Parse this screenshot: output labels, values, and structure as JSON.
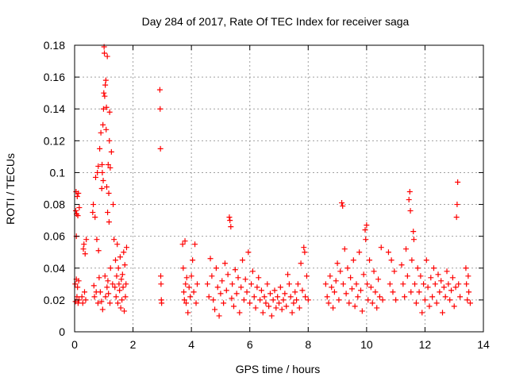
{
  "chart_data": {
    "type": "scatter",
    "title": "Day 284 of 2017, Rate Of TEC Index for receiver saga",
    "xlabel": "GPS time / hours",
    "ylabel": "ROTI / TECUs",
    "xlim": [
      0,
      14
    ],
    "ylim": [
      0,
      0.18
    ],
    "x_ticks": [
      "0",
      "2",
      "4",
      "6",
      "8",
      "10",
      "12",
      "14"
    ],
    "x_tick_values": [
      0,
      2,
      4,
      6,
      8,
      10,
      12,
      14
    ],
    "y_ticks": [
      "0",
      "0.02",
      "0.04",
      "0.06",
      "0.08",
      "0.1",
      "0.12",
      "0.14",
      "0.16",
      "0.18"
    ],
    "y_tick_values": [
      0,
      0.02,
      0.04,
      0.06,
      0.08,
      0.1,
      0.12,
      0.14,
      0.16,
      0.18
    ],
    "grid": true,
    "marker": "+",
    "color": "#ff0000",
    "series": [
      {
        "name": "ROTI",
        "points": [
          [
            0.02,
            0.03
          ],
          [
            0.03,
            0.019
          ],
          [
            0.04,
            0.076
          ],
          [
            0.05,
            0.088
          ],
          [
            0.06,
            0.06
          ],
          [
            0.06,
            0.033
          ],
          [
            0.07,
            0.074
          ],
          [
            0.08,
            0.022
          ],
          [
            0.09,
            0.085
          ],
          [
            0.1,
            0.028
          ],
          [
            0.11,
            0.073
          ],
          [
            0.12,
            0.018
          ],
          [
            0.13,
            0.087
          ],
          [
            0.14,
            0.032
          ],
          [
            0.15,
            0.02
          ],
          [
            0.16,
            0.078
          ],
          [
            0.25,
            0.022
          ],
          [
            0.28,
            0.018
          ],
          [
            0.3,
            0.052
          ],
          [
            0.32,
            0.055
          ],
          [
            0.34,
            0.025
          ],
          [
            0.36,
            0.049
          ],
          [
            0.38,
            0.02
          ],
          [
            0.4,
            0.058
          ],
          [
            0.62,
            0.075
          ],
          [
            0.64,
            0.08
          ],
          [
            0.66,
            0.029
          ],
          [
            0.68,
            0.022
          ],
          [
            0.7,
            0.072
          ],
          [
            0.72,
            0.097
          ],
          [
            0.74,
            0.025
          ],
          [
            0.76,
            0.058
          ],
          [
            0.78,
            0.1
          ],
          [
            0.8,
            0.018
          ],
          [
            0.81,
            0.104
          ],
          [
            0.82,
            0.051
          ],
          [
            0.84,
            0.034
          ],
          [
            0.86,
            0.115
          ],
          [
            0.88,
            0.025
          ],
          [
            0.9,
            0.125
          ],
          [
            0.92,
            0.019
          ],
          [
            0.93,
            0.09
          ],
          [
            0.94,
            0.105
          ],
          [
            0.95,
            0.1
          ],
          [
            0.96,
            0.014
          ],
          [
            0.97,
            0.13
          ],
          [
            0.98,
            0.095
          ],
          [
            0.99,
            0.14
          ],
          [
            1.0,
            0.15
          ],
          [
            1.01,
            0.179
          ],
          [
            1.02,
            0.175
          ],
          [
            1.03,
            0.148
          ],
          [
            1.04,
            0.035
          ],
          [
            1.05,
            0.155
          ],
          [
            1.06,
            0.022
          ],
          [
            1.07,
            0.158
          ],
          [
            1.08,
            0.127
          ],
          [
            1.09,
            0.141
          ],
          [
            1.1,
            0.091
          ],
          [
            1.11,
            0.028
          ],
          [
            1.12,
            0.173
          ],
          [
            1.13,
            0.075
          ],
          [
            1.14,
            0.032
          ],
          [
            1.15,
            0.105
          ],
          [
            1.16,
            0.024
          ],
          [
            1.17,
            0.087
          ],
          [
            1.18,
            0.069
          ],
          [
            1.19,
            0.12
          ],
          [
            1.2,
            0.138
          ],
          [
            1.21,
            0.018
          ],
          [
            1.22,
            0.103
          ],
          [
            1.23,
            0.04
          ],
          [
            1.26,
            0.113
          ],
          [
            1.3,
            0.03
          ],
          [
            1.32,
            0.08
          ],
          [
            1.35,
            0.058
          ],
          [
            1.38,
            0.028
          ],
          [
            1.4,
            0.045
          ],
          [
            1.42,
            0.022
          ],
          [
            1.44,
            0.035
          ],
          [
            1.46,
            0.055
          ],
          [
            1.48,
            0.018
          ],
          [
            1.5,
            0.04
          ],
          [
            1.52,
            0.03
          ],
          [
            1.54,
            0.026
          ],
          [
            1.56,
            0.047
          ],
          [
            1.58,
            0.015
          ],
          [
            1.6,
            0.033
          ],
          [
            1.62,
            0.02
          ],
          [
            1.64,
            0.036
          ],
          [
            1.66,
            0.028
          ],
          [
            1.68,
            0.05
          ],
          [
            1.7,
            0.013
          ],
          [
            1.72,
            0.042
          ],
          [
            1.74,
            0.022
          ],
          [
            1.76,
            0.03
          ],
          [
            1.78,
            0.053
          ],
          [
            2.92,
            0.152
          ],
          [
            2.93,
            0.14
          ],
          [
            2.94,
            0.115
          ],
          [
            2.95,
            0.035
          ],
          [
            2.96,
            0.03
          ],
          [
            2.97,
            0.02
          ],
          [
            2.98,
            0.018
          ],
          [
            3.7,
            0.055
          ],
          [
            3.72,
            0.04
          ],
          [
            3.74,
            0.025
          ],
          [
            3.76,
            0.02
          ],
          [
            3.78,
            0.057
          ],
          [
            3.8,
            0.03
          ],
          [
            3.82,
            0.018
          ],
          [
            3.84,
            0.034
          ],
          [
            3.88,
            0.012
          ],
          [
            3.92,
            0.028
          ],
          [
            3.96,
            0.022
          ],
          [
            4.0,
            0.035
          ],
          [
            4.04,
            0.045
          ],
          [
            4.08,
            0.025
          ],
          [
            4.12,
            0.055
          ],
          [
            4.16,
            0.018
          ],
          [
            4.2,
            0.03
          ],
          [
            4.55,
            0.03
          ],
          [
            4.6,
            0.022
          ],
          [
            4.65,
            0.046
          ],
          [
            4.7,
            0.035
          ],
          [
            4.75,
            0.02
          ],
          [
            4.8,
            0.014
          ],
          [
            4.85,
            0.04
          ],
          [
            4.9,
            0.028
          ],
          [
            4.95,
            0.01
          ],
          [
            5.0,
            0.024
          ],
          [
            5.05,
            0.032
          ],
          [
            5.1,
            0.018
          ],
          [
            5.15,
            0.043
          ],
          [
            5.2,
            0.026
          ],
          [
            5.25,
            0.036
          ],
          [
            5.3,
            0.072
          ],
          [
            5.32,
            0.07
          ],
          [
            5.35,
            0.066
          ],
          [
            5.38,
            0.021
          ],
          [
            5.4,
            0.03
          ],
          [
            5.45,
            0.016
          ],
          [
            5.5,
            0.039
          ],
          [
            5.55,
            0.024
          ],
          [
            5.6,
            0.034
          ],
          [
            5.65,
            0.012
          ],
          [
            5.7,
            0.028
          ],
          [
            5.75,
            0.045
          ],
          [
            5.8,
            0.02
          ],
          [
            5.85,
            0.033
          ],
          [
            5.9,
            0.025
          ],
          [
            5.95,
            0.05
          ],
          [
            6.0,
            0.018
          ],
          [
            6.05,
            0.03
          ],
          [
            6.1,
            0.038
          ],
          [
            6.15,
            0.022
          ],
          [
            6.2,
            0.015
          ],
          [
            6.25,
            0.028
          ],
          [
            6.3,
            0.034
          ],
          [
            6.35,
            0.02
          ],
          [
            6.4,
            0.026
          ],
          [
            6.45,
            0.012
          ],
          [
            6.5,
            0.022
          ],
          [
            6.55,
            0.018
          ],
          [
            6.6,
            0.03
          ],
          [
            6.65,
            0.016
          ],
          [
            6.7,
            0.024
          ],
          [
            6.75,
            0.01
          ],
          [
            6.8,
            0.02
          ],
          [
            6.85,
            0.026
          ],
          [
            6.9,
            0.015
          ],
          [
            6.95,
            0.022
          ],
          [
            7.0,
            0.018
          ],
          [
            7.05,
            0.028
          ],
          [
            7.1,
            0.014
          ],
          [
            7.15,
            0.02
          ],
          [
            7.2,
            0.024
          ],
          [
            7.25,
            0.016
          ],
          [
            7.3,
            0.036
          ],
          [
            7.35,
            0.03
          ],
          [
            7.4,
            0.022
          ],
          [
            7.45,
            0.012
          ],
          [
            7.5,
            0.018
          ],
          [
            7.55,
            0.025
          ],
          [
            7.6,
            0.02
          ],
          [
            7.65,
            0.03
          ],
          [
            7.7,
            0.015
          ],
          [
            7.75,
            0.043
          ],
          [
            7.8,
            0.026
          ],
          [
            7.85,
            0.053
          ],
          [
            7.88,
            0.05
          ],
          [
            7.9,
            0.022
          ],
          [
            7.95,
            0.035
          ],
          [
            8.0,
            0.02
          ],
          [
            8.6,
            0.03
          ],
          [
            8.65,
            0.022
          ],
          [
            8.7,
            0.018
          ],
          [
            8.75,
            0.035
          ],
          [
            8.8,
            0.028
          ],
          [
            8.85,
            0.015
          ],
          [
            8.9,
            0.025
          ],
          [
            8.95,
            0.032
          ],
          [
            9.0,
            0.043
          ],
          [
            9.05,
            0.02
          ],
          [
            9.1,
            0.038
          ],
          [
            9.15,
            0.081
          ],
          [
            9.18,
            0.079
          ],
          [
            9.2,
            0.03
          ],
          [
            9.25,
            0.052
          ],
          [
            9.3,
            0.024
          ],
          [
            9.35,
            0.04
          ],
          [
            9.4,
            0.018
          ],
          [
            9.45,
            0.034
          ],
          [
            9.5,
            0.027
          ],
          [
            9.55,
            0.045
          ],
          [
            9.6,
            0.016
          ],
          [
            9.65,
            0.03
          ],
          [
            9.7,
            0.022
          ],
          [
            9.75,
            0.05
          ],
          [
            9.8,
            0.026
          ],
          [
            9.85,
            0.013
          ],
          [
            9.9,
            0.036
          ],
          [
            9.95,
            0.064
          ],
          [
            9.97,
            0.058
          ],
          [
            10.0,
            0.067
          ],
          [
            10.02,
            0.03
          ],
          [
            10.05,
            0.02
          ],
          [
            10.1,
            0.045
          ],
          [
            10.15,
            0.028
          ],
          [
            10.2,
            0.018
          ],
          [
            10.25,
            0.038
          ],
          [
            10.3,
            0.025
          ],
          [
            10.35,
            0.015
          ],
          [
            10.4,
            0.033
          ],
          [
            10.45,
            0.022
          ],
          [
            10.5,
            0.053
          ],
          [
            10.55,
            0.02
          ],
          [
            10.75,
            0.05
          ],
          [
            10.8,
            0.03
          ],
          [
            10.85,
            0.045
          ],
          [
            10.9,
            0.025
          ],
          [
            10.95,
            0.038
          ],
          [
            11.0,
            0.02
          ],
          [
            11.2,
            0.042
          ],
          [
            11.25,
            0.03
          ],
          [
            11.3,
            0.022
          ],
          [
            11.35,
            0.052
          ],
          [
            11.4,
            0.035
          ],
          [
            11.45,
            0.083
          ],
          [
            11.48,
            0.088
          ],
          [
            11.5,
            0.076
          ],
          [
            11.52,
            0.025
          ],
          [
            11.55,
            0.045
          ],
          [
            11.6,
            0.063
          ],
          [
            11.62,
            0.058
          ],
          [
            11.65,
            0.03
          ],
          [
            11.7,
            0.018
          ],
          [
            11.75,
            0.04
          ],
          [
            11.8,
            0.025
          ],
          [
            11.85,
            0.035
          ],
          [
            11.9,
            0.012
          ],
          [
            11.95,
            0.03
          ],
          [
            12.0,
            0.02
          ],
          [
            12.05,
            0.045
          ],
          [
            12.1,
            0.028
          ],
          [
            12.15,
            0.016
          ],
          [
            12.2,
            0.034
          ],
          [
            12.25,
            0.022
          ],
          [
            12.3,
            0.04
          ],
          [
            12.35,
            0.03
          ],
          [
            12.4,
            0.018
          ],
          [
            12.45,
            0.036
          ],
          [
            12.5,
            0.025
          ],
          [
            12.55,
            0.032
          ],
          [
            12.6,
            0.012
          ],
          [
            12.65,
            0.028
          ],
          [
            12.7,
            0.022
          ],
          [
            12.75,
            0.038
          ],
          [
            12.8,
            0.03
          ],
          [
            12.85,
            0.02
          ],
          [
            12.9,
            0.026
          ],
          [
            12.95,
            0.034
          ],
          [
            13.0,
            0.016
          ],
          [
            13.05,
            0.028
          ],
          [
            13.08,
            0.072
          ],
          [
            13.1,
            0.08
          ],
          [
            13.12,
            0.094
          ],
          [
            13.15,
            0.03
          ],
          [
            13.2,
            0.022
          ],
          [
            13.4,
            0.04
          ],
          [
            13.42,
            0.03
          ],
          [
            13.45,
            0.02
          ],
          [
            13.48,
            0.035
          ],
          [
            13.5,
            0.025
          ],
          [
            13.55,
            0.018
          ]
        ]
      }
    ]
  }
}
